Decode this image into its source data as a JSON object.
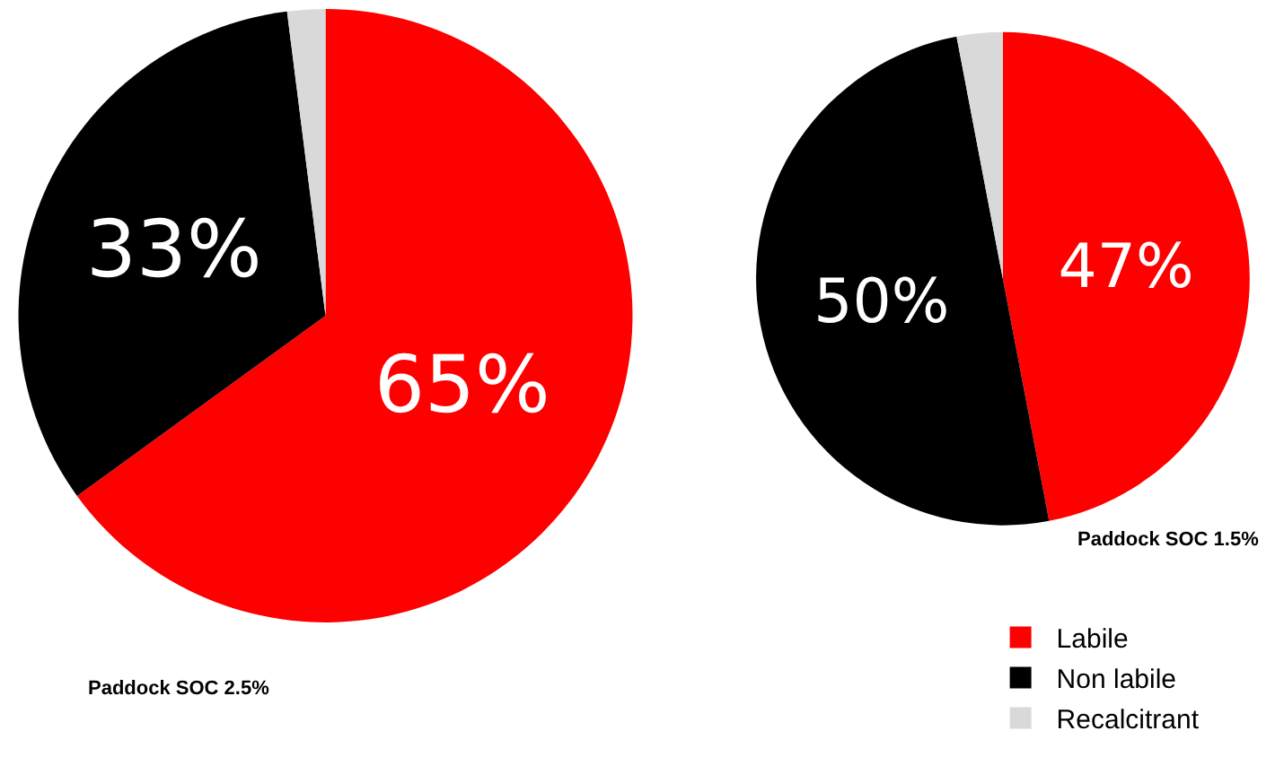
{
  "chart_data": [
    {
      "type": "pie",
      "title": "Paddock SOC 2.5%",
      "categories": [
        "Labile",
        "Non labile",
        "Recalcitrant"
      ],
      "values": [
        65,
        33,
        2
      ],
      "colors": [
        "#ff0000",
        "#000000",
        "#d9d9d9"
      ],
      "value_labels": [
        "65%",
        "33%",
        null
      ],
      "legend": "bottom right"
    },
    {
      "type": "pie",
      "title": "Paddock SOC 1.5%",
      "categories": [
        null,
        null,
        null
      ],
      "values": [
        47,
        50,
        3
      ],
      "colors": [
        "#ff0000",
        "#000000",
        "#d9d9d9"
      ],
      "value_labels": [
        "47%",
        "50%",
        null
      ]
    }
  ]
}
